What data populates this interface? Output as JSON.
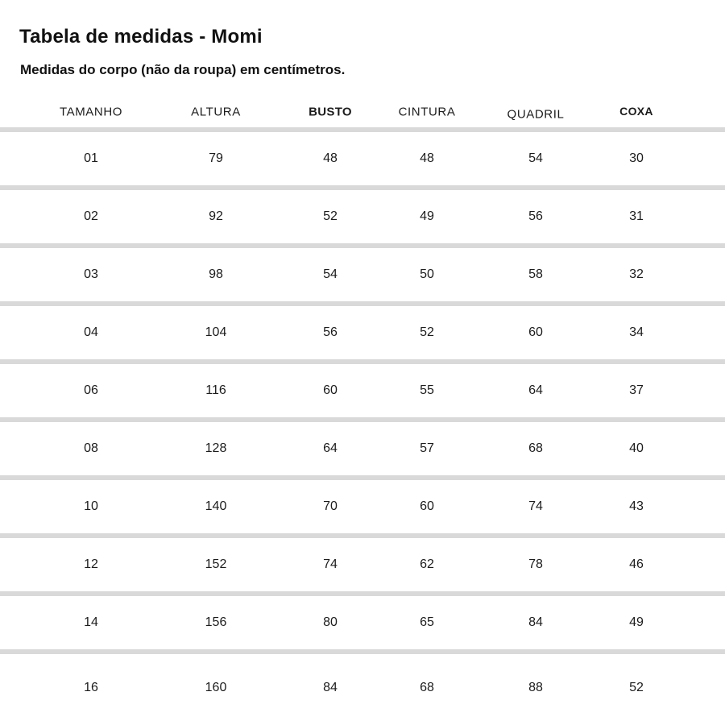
{
  "header": {
    "title": "Tabela de medidas - Momi",
    "subtitle": "Medidas do corpo (não da roupa) em centímetros."
  },
  "table": {
    "columns": [
      {
        "label": "TAMANHO",
        "bold": false
      },
      {
        "label": "ALTURA",
        "bold": false
      },
      {
        "label": "BUSTO",
        "bold": true
      },
      {
        "label": "CINTURA",
        "bold": false
      },
      {
        "label": "QUADRIL",
        "bold": false
      },
      {
        "label": "COXA",
        "bold": true
      }
    ],
    "rows": [
      [
        "01",
        "79",
        "48",
        "48",
        "54",
        "30"
      ],
      [
        "02",
        "92",
        "52",
        "49",
        "56",
        "31"
      ],
      [
        "03",
        "98",
        "54",
        "50",
        "58",
        "32"
      ],
      [
        "04",
        "104",
        "56",
        "52",
        "60",
        "34"
      ],
      [
        "06",
        "116",
        "60",
        "55",
        "64",
        "37"
      ],
      [
        "08",
        "128",
        "64",
        "57",
        "68",
        "40"
      ],
      [
        "10",
        "140",
        "70",
        "60",
        "74",
        "43"
      ],
      [
        "12",
        "152",
        "74",
        "62",
        "78",
        "46"
      ],
      [
        "14",
        "156",
        "80",
        "65",
        "84",
        "49"
      ],
      [
        "16",
        "160",
        "84",
        "68",
        "88",
        "52"
      ]
    ]
  },
  "colors": {
    "divider": "#d9d9d9",
    "text": "#1a1a1a",
    "background": "#ffffff"
  }
}
